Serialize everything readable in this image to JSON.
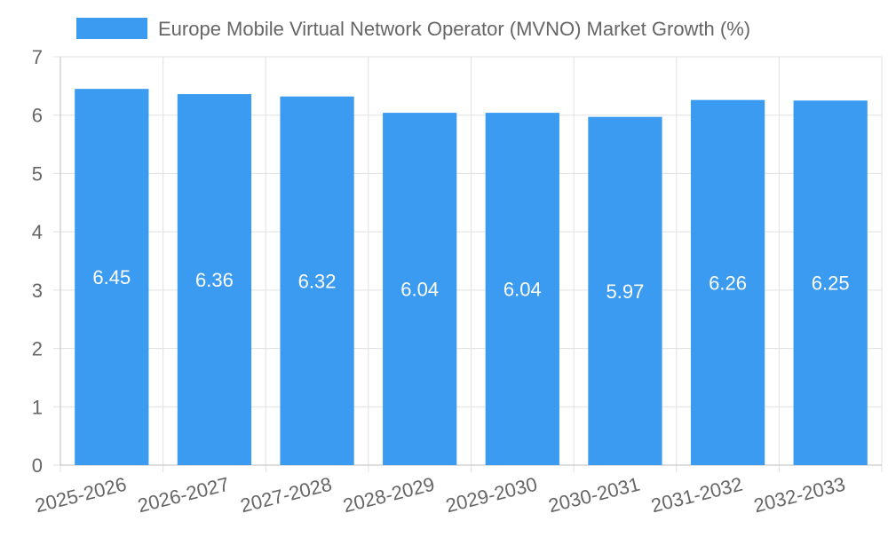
{
  "chart_data": {
    "type": "bar",
    "categories": [
      "2025-2026",
      "2026-2027",
      "2027-2028",
      "2028-2029",
      "2029-2030",
      "2030-2031",
      "2031-2032",
      "2032-2033"
    ],
    "series": [
      {
        "name": "Europe Mobile Virtual Network Operator (MVNO) Market Growth (%)",
        "values": [
          6.45,
          6.36,
          6.32,
          6.04,
          6.04,
          5.97,
          6.26,
          6.25
        ],
        "color": "#3b9bf0"
      }
    ],
    "ylim": [
      0,
      7
    ],
    "yticks": [
      0,
      1,
      2,
      3,
      4,
      5,
      6,
      7
    ],
    "grid": true,
    "legend_position": "top"
  }
}
